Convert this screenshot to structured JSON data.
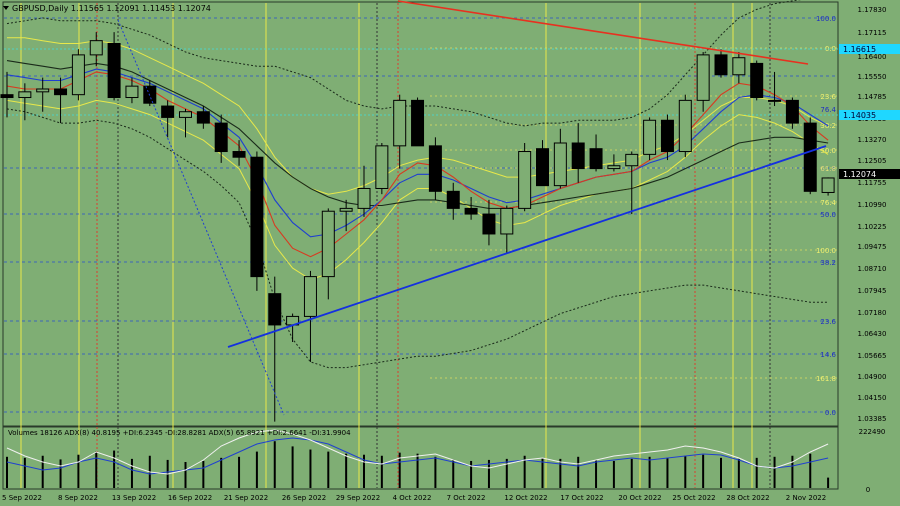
{
  "header": {
    "symbol_line": "GBPUSD,Daily  1.11565 1.12091 1.11453 1.12074"
  },
  "indicator_header": {
    "text": "Volumes 18126  ADX(8) 40.8195 +DI:6.2345 -DI:28.8281  ADX(5) 65.8921 +DI:2.6641 -DI:31.9904"
  },
  "current_price_label": "1.12074",
  "cyan_labels": [
    "1.16615",
    "1.14035"
  ],
  "chart_data": {
    "type": "candlestick",
    "title": "GBPUSD,Daily",
    "ylim": [
      1.0338,
      1.1826
    ],
    "price_ticks": [
      "1.17830",
      "1.17115",
      "1.16400",
      "1.15550",
      "1.14785",
      "1.14035",
      "1.13270",
      "1.12505",
      "1.11755",
      "1.10990",
      "1.10225",
      "1.09475",
      "1.08710",
      "1.07945",
      "1.07180",
      "1.06430",
      "1.05665",
      "1.04900",
      "1.04150",
      "1.03385"
    ],
    "x_labels": [
      "5 Sep 2022",
      "8 Sep 2022",
      "13 Sep 2022",
      "16 Sep 2022",
      "21 Sep 2022",
      "26 Sep 2022",
      "29 Sep 2022",
      "4 Oct 2022",
      "7 Oct 2022",
      "12 Oct 2022",
      "17 Oct 2022",
      "20 Oct 2022",
      "25 Oct 2022",
      "28 Oct 2022",
      "2 Nov 2022"
    ],
    "candles": [
      {
        "o": 1.15,
        "h": 1.158,
        "l": 1.142,
        "c": 1.149
      },
      {
        "o": 1.149,
        "h": 1.154,
        "l": 1.141,
        "c": 1.151
      },
      {
        "o": 1.151,
        "h": 1.156,
        "l": 1.144,
        "c": 1.152
      },
      {
        "o": 1.152,
        "h": 1.156,
        "l": 1.14,
        "c": 1.15
      },
      {
        "o": 1.15,
        "h": 1.166,
        "l": 1.148,
        "c": 1.164
      },
      {
        "o": 1.164,
        "h": 1.172,
        "l": 1.16,
        "c": 1.169
      },
      {
        "o": 1.168,
        "h": 1.172,
        "l": 1.148,
        "c": 1.149
      },
      {
        "o": 1.149,
        "h": 1.156,
        "l": 1.147,
        "c": 1.153
      },
      {
        "o": 1.153,
        "h": 1.155,
        "l": 1.146,
        "c": 1.147
      },
      {
        "o": 1.146,
        "h": 1.148,
        "l": 1.135,
        "c": 1.142
      },
      {
        "o": 1.142,
        "h": 1.145,
        "l": 1.135,
        "c": 1.144
      },
      {
        "o": 1.144,
        "h": 1.146,
        "l": 1.138,
        "c": 1.14
      },
      {
        "o": 1.14,
        "h": 1.143,
        "l": 1.126,
        "c": 1.13
      },
      {
        "o": 1.13,
        "h": 1.134,
        "l": 1.125,
        "c": 1.128
      },
      {
        "o": 1.128,
        "h": 1.13,
        "l": 1.081,
        "c": 1.086
      },
      {
        "o": 1.08,
        "h": 1.086,
        "l": 1.035,
        "c": 1.069
      },
      {
        "o": 1.069,
        "h": 1.073,
        "l": 1.063,
        "c": 1.072
      },
      {
        "o": 1.072,
        "h": 1.088,
        "l": 1.056,
        "c": 1.086
      },
      {
        "o": 1.086,
        "h": 1.11,
        "l": 1.078,
        "c": 1.109
      },
      {
        "o": 1.109,
        "h": 1.113,
        "l": 1.102,
        "c": 1.11
      },
      {
        "o": 1.11,
        "h": 1.125,
        "l": 1.107,
        "c": 1.117
      },
      {
        "o": 1.117,
        "h": 1.133,
        "l": 1.115,
        "c": 1.132
      },
      {
        "o": 1.132,
        "h": 1.15,
        "l": 1.124,
        "c": 1.148
      },
      {
        "o": 1.148,
        "h": 1.149,
        "l": 1.132,
        "c": 1.132
      },
      {
        "o": 1.132,
        "h": 1.135,
        "l": 1.113,
        "c": 1.116
      },
      {
        "o": 1.116,
        "h": 1.119,
        "l": 1.106,
        "c": 1.11
      },
      {
        "o": 1.11,
        "h": 1.114,
        "l": 1.106,
        "c": 1.108
      },
      {
        "o": 1.108,
        "h": 1.113,
        "l": 1.097,
        "c": 1.101
      },
      {
        "o": 1.101,
        "h": 1.111,
        "l": 1.094,
        "c": 1.11
      },
      {
        "o": 1.11,
        "h": 1.133,
        "l": 1.109,
        "c": 1.13
      },
      {
        "o": 1.131,
        "h": 1.134,
        "l": 1.118,
        "c": 1.118
      },
      {
        "o": 1.118,
        "h": 1.138,
        "l": 1.117,
        "c": 1.133
      },
      {
        "o": 1.133,
        "h": 1.14,
        "l": 1.119,
        "c": 1.124
      },
      {
        "o": 1.131,
        "h": 1.136,
        "l": 1.123,
        "c": 1.124
      },
      {
        "o": 1.124,
        "h": 1.129,
        "l": 1.123,
        "c": 1.125
      },
      {
        "o": 1.125,
        "h": 1.13,
        "l": 1.108,
        "c": 1.129
      },
      {
        "o": 1.129,
        "h": 1.142,
        "l": 1.127,
        "c": 1.141
      },
      {
        "o": 1.141,
        "h": 1.143,
        "l": 1.127,
        "c": 1.13
      },
      {
        "o": 1.13,
        "h": 1.15,
        "l": 1.128,
        "c": 1.148
      },
      {
        "o": 1.148,
        "h": 1.165,
        "l": 1.144,
        "c": 1.164
      },
      {
        "o": 1.164,
        "h": 1.166,
        "l": 1.156,
        "c": 1.157
      },
      {
        "o": 1.157,
        "h": 1.165,
        "l": 1.154,
        "c": 1.163
      },
      {
        "o": 1.161,
        "h": 1.162,
        "l": 1.148,
        "c": 1.149
      },
      {
        "o": 1.148,
        "h": 1.158,
        "l": 1.146,
        "c": 1.148
      },
      {
        "o": 1.148,
        "h": 1.149,
        "l": 1.138,
        "c": 1.14
      },
      {
        "o": 1.14,
        "h": 1.142,
        "l": 1.115,
        "c": 1.116
      },
      {
        "o": 1.1156,
        "h": 1.1209,
        "l": 1.1145,
        "c": 1.1207
      }
    ],
    "moving_averages": [
      {
        "name": "ma-dark",
        "color": "#1a2a1a",
        "values": [
          1.162,
          1.161,
          1.16,
          1.159,
          1.16,
          1.161,
          1.16,
          1.158,
          1.155,
          1.152,
          1.149,
          1.146,
          1.142,
          1.138,
          1.132,
          1.126,
          1.121,
          1.117,
          1.114,
          1.112,
          1.111,
          1.111,
          1.112,
          1.113,
          1.113,
          1.112,
          1.111,
          1.11,
          1.11,
          1.111,
          1.112,
          1.113,
          1.114,
          1.115,
          1.116,
          1.117,
          1.119,
          1.121,
          1.124,
          1.127,
          1.13,
          1.133,
          1.134,
          1.135,
          1.135,
          1.134,
          1.133
        ]
      },
      {
        "name": "ma-blue",
        "color": "#1f3fd0",
        "values": [
          1.157,
          1.156,
          1.155,
          1.155,
          1.157,
          1.159,
          1.158,
          1.156,
          1.154,
          1.151,
          1.148,
          1.145,
          1.14,
          1.135,
          1.125,
          1.113,
          1.105,
          1.1,
          1.101,
          1.104,
          1.108,
          1.113,
          1.119,
          1.122,
          1.122,
          1.12,
          1.117,
          1.114,
          1.112,
          1.113,
          1.115,
          1.117,
          1.119,
          1.121,
          1.122,
          1.123,
          1.126,
          1.128,
          1.132,
          1.138,
          1.144,
          1.149,
          1.15,
          1.149,
          1.147,
          1.143,
          1.139
        ]
      },
      {
        "name": "ma-red",
        "color": "#d83a20",
        "values": [
          1.153,
          1.152,
          1.152,
          1.152,
          1.155,
          1.158,
          1.157,
          1.155,
          1.152,
          1.148,
          1.145,
          1.142,
          1.137,
          1.132,
          1.12,
          1.104,
          1.096,
          1.093,
          1.096,
          1.101,
          1.106,
          1.113,
          1.122,
          1.126,
          1.125,
          1.121,
          1.116,
          1.112,
          1.11,
          1.111,
          1.114,
          1.117,
          1.119,
          1.121,
          1.122,
          1.123,
          1.127,
          1.13,
          1.136,
          1.143,
          1.15,
          1.154,
          1.153,
          1.15,
          1.146,
          1.139,
          1.134
        ]
      }
    ],
    "bollinger": {
      "upper": [
        1.175,
        1.176,
        1.177,
        1.176,
        1.176,
        1.176,
        1.175,
        1.173,
        1.171,
        1.168,
        1.165,
        1.163,
        1.162,
        1.161,
        1.16,
        1.16,
        1.158,
        1.156,
        1.152,
        1.148,
        1.146,
        1.145,
        1.146,
        1.146,
        1.146,
        1.145,
        1.144,
        1.142,
        1.14,
        1.139,
        1.14,
        1.14,
        1.141,
        1.141,
        1.141,
        1.142,
        1.145,
        1.15,
        1.157,
        1.164,
        1.171,
        1.177,
        1.18,
        1.182,
        1.183,
        1.184,
        1.184
      ],
      "lower": [
        1.145,
        1.144,
        1.142,
        1.14,
        1.14,
        1.141,
        1.14,
        1.138,
        1.135,
        1.131,
        1.127,
        1.123,
        1.118,
        1.112,
        1.098,
        1.078,
        1.064,
        1.056,
        1.054,
        1.054,
        1.055,
        1.056,
        1.057,
        1.058,
        1.058,
        1.059,
        1.06,
        1.062,
        1.064,
        1.067,
        1.07,
        1.073,
        1.075,
        1.077,
        1.079,
        1.08,
        1.081,
        1.082,
        1.083,
        1.083,
        1.082,
        1.081,
        1.08,
        1.079,
        1.078,
        1.077,
        1.077
      ]
    },
    "envelope_yellow": {
      "upper": [
        1.17,
        1.17,
        1.169,
        1.168,
        1.168,
        1.169,
        1.168,
        1.166,
        1.163,
        1.16,
        1.157,
        1.154,
        1.15,
        1.146,
        1.138,
        1.128,
        1.121,
        1.117,
        1.115,
        1.116,
        1.118,
        1.121,
        1.125,
        1.127,
        1.128,
        1.127,
        1.125,
        1.123,
        1.121,
        1.121,
        1.122,
        1.123,
        1.124,
        1.125,
        1.126,
        1.127,
        1.13,
        1.132,
        1.136,
        1.141,
        1.146,
        1.149,
        1.149,
        1.148,
        1.146,
        1.142,
        1.139
      ],
      "lower": [
        1.148,
        1.147,
        1.146,
        1.145,
        1.146,
        1.148,
        1.147,
        1.145,
        1.143,
        1.14,
        1.137,
        1.134,
        1.129,
        1.124,
        1.112,
        1.097,
        1.089,
        1.085,
        1.087,
        1.092,
        1.098,
        1.105,
        1.113,
        1.117,
        1.117,
        1.114,
        1.11,
        1.106,
        1.104,
        1.105,
        1.108,
        1.111,
        1.113,
        1.115,
        1.116,
        1.117,
        1.12,
        1.123,
        1.128,
        1.134,
        1.139,
        1.143,
        1.142,
        1.14,
        1.137,
        1.133,
        1.129
      ]
    },
    "fib_blue": [
      "100.0",
      "61.8",
      "50.0",
      "38.2",
      "23.6",
      "14.6",
      "0.0"
    ],
    "fib_yellow": [
      "0.0",
      "23.6",
      "38.2",
      "50.0",
      "61.8",
      "76.4",
      "100.0",
      "161.8"
    ],
    "fib_far_yellow": "76.4",
    "volumes": [
      60,
      58,
      62,
      55,
      64,
      70,
      72,
      56,
      62,
      54,
      50,
      52,
      58,
      60,
      70,
      90,
      80,
      74,
      70,
      66,
      64,
      62,
      68,
      66,
      60,
      55,
      52,
      54,
      56,
      62,
      58,
      56,
      60,
      54,
      52,
      56,
      60,
      58,
      62,
      64,
      58,
      56,
      58,
      60,
      62,
      66,
      20
    ],
    "adx_axis": [
      "222490",
      "0"
    ]
  }
}
